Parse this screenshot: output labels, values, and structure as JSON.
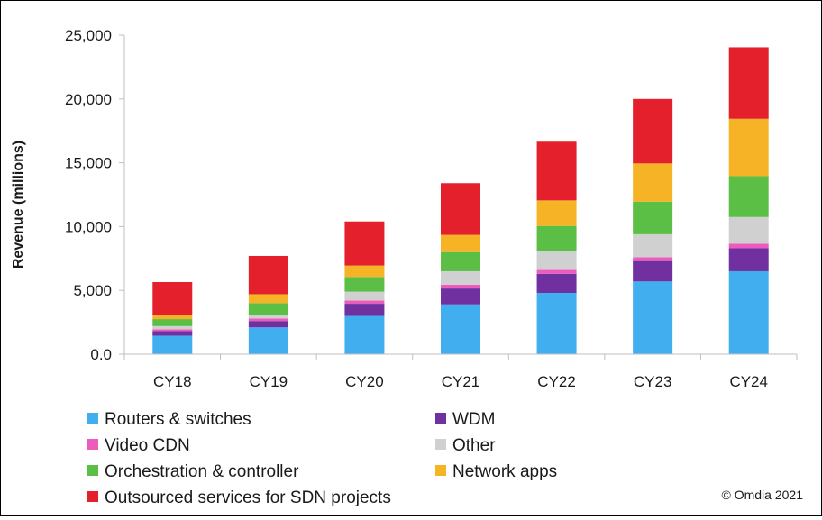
{
  "chart_data": {
    "type": "bar",
    "stacked": true,
    "categories": [
      "CY18",
      "CY19",
      "CY20",
      "CY21",
      "CY22",
      "CY23",
      "CY24"
    ],
    "ylabel": "Revenue (millions)",
    "xlabel": "",
    "ylim": [
      0,
      25000
    ],
    "yticks": [
      0,
      5000,
      10000,
      15000,
      20000,
      25000
    ],
    "ytick_labels": [
      "0.0",
      "5,000",
      "10,000",
      "15,000",
      "20,000",
      "25,000"
    ],
    "grid": false,
    "legend_position": "bottom",
    "series": [
      {
        "name": "Routers & switches",
        "color": "#41aef0",
        "values": [
          1450,
          2100,
          3000,
          3900,
          4800,
          5700,
          6500
        ]
      },
      {
        "name": "WDM",
        "color": "#7030a0",
        "values": [
          350,
          500,
          950,
          1250,
          1500,
          1600,
          1800
        ]
      },
      {
        "name": "Video CDN",
        "color": "#ec5cbc",
        "values": [
          150,
          200,
          250,
          300,
          300,
          300,
          350
        ]
      },
      {
        "name": "Other",
        "color": "#d0d0d0",
        "values": [
          250,
          300,
          700,
          1050,
          1500,
          1800,
          2100
        ]
      },
      {
        "name": "Orchestration & controller",
        "color": "#5cbf45",
        "values": [
          550,
          900,
          1150,
          1500,
          1950,
          2550,
          3200
        ]
      },
      {
        "name": "Network apps",
        "color": "#f5b325",
        "values": [
          300,
          700,
          900,
          1350,
          2000,
          3000,
          4500
        ]
      },
      {
        "name": "Outsourced services for SDN projects",
        "color": "#e3202b",
        "values": [
          2600,
          3000,
          3450,
          4050,
          4600,
          5050,
          5600
        ]
      }
    ],
    "legend_order": [
      0,
      1,
      2,
      3,
      4,
      5,
      6
    ],
    "credit": "© Omdia 2021"
  }
}
